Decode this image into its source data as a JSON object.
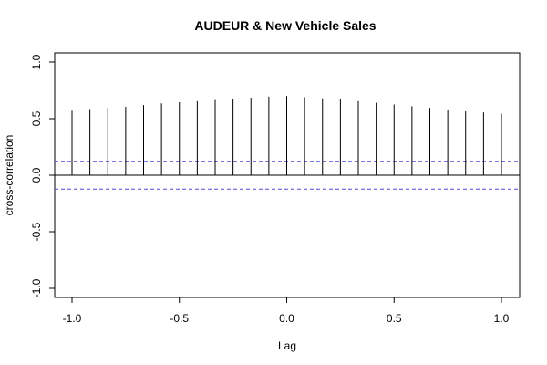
{
  "chart_data": {
    "type": "bar",
    "title": "AUDEUR & New Vehicle Sales",
    "xlabel": "Lag",
    "ylabel": "cross-correlation",
    "xlim": [
      -1.0,
      1.0
    ],
    "ylim": [
      -1.0,
      1.0
    ],
    "x_ticks": [
      -1.0,
      -0.5,
      0.0,
      0.5,
      1.0
    ],
    "x_tick_labels": [
      "-1.0",
      "-0.5",
      "0.0",
      "0.5",
      "1.0"
    ],
    "y_ticks": [
      -1.0,
      -0.5,
      0.0,
      0.5,
      1.0
    ],
    "y_tick_labels": [
      "-1.0",
      "-0.5",
      "0.0",
      "0.5",
      "1.0"
    ],
    "lags": [
      -1.0,
      -0.9167,
      -0.8333,
      -0.75,
      -0.6667,
      -0.5833,
      -0.5,
      -0.4167,
      -0.3333,
      -0.25,
      -0.1667,
      -0.0833,
      0.0,
      0.0833,
      0.1667,
      0.25,
      0.3333,
      0.4167,
      0.5,
      0.5833,
      0.6667,
      0.75,
      0.8333,
      0.9167,
      1.0
    ],
    "values": [
      0.57,
      0.585,
      0.595,
      0.605,
      0.62,
      0.635,
      0.645,
      0.655,
      0.665,
      0.675,
      0.685,
      0.695,
      0.7,
      0.69,
      0.68,
      0.67,
      0.655,
      0.64,
      0.625,
      0.61,
      0.595,
      0.58,
      0.565,
      0.555,
      0.545
    ],
    "confidence_bound": 0.123,
    "zero_line": true,
    "grid": false,
    "colors": {
      "spikes": "#000000",
      "confidence": "#4b4bd6",
      "axis": "#000000"
    }
  }
}
